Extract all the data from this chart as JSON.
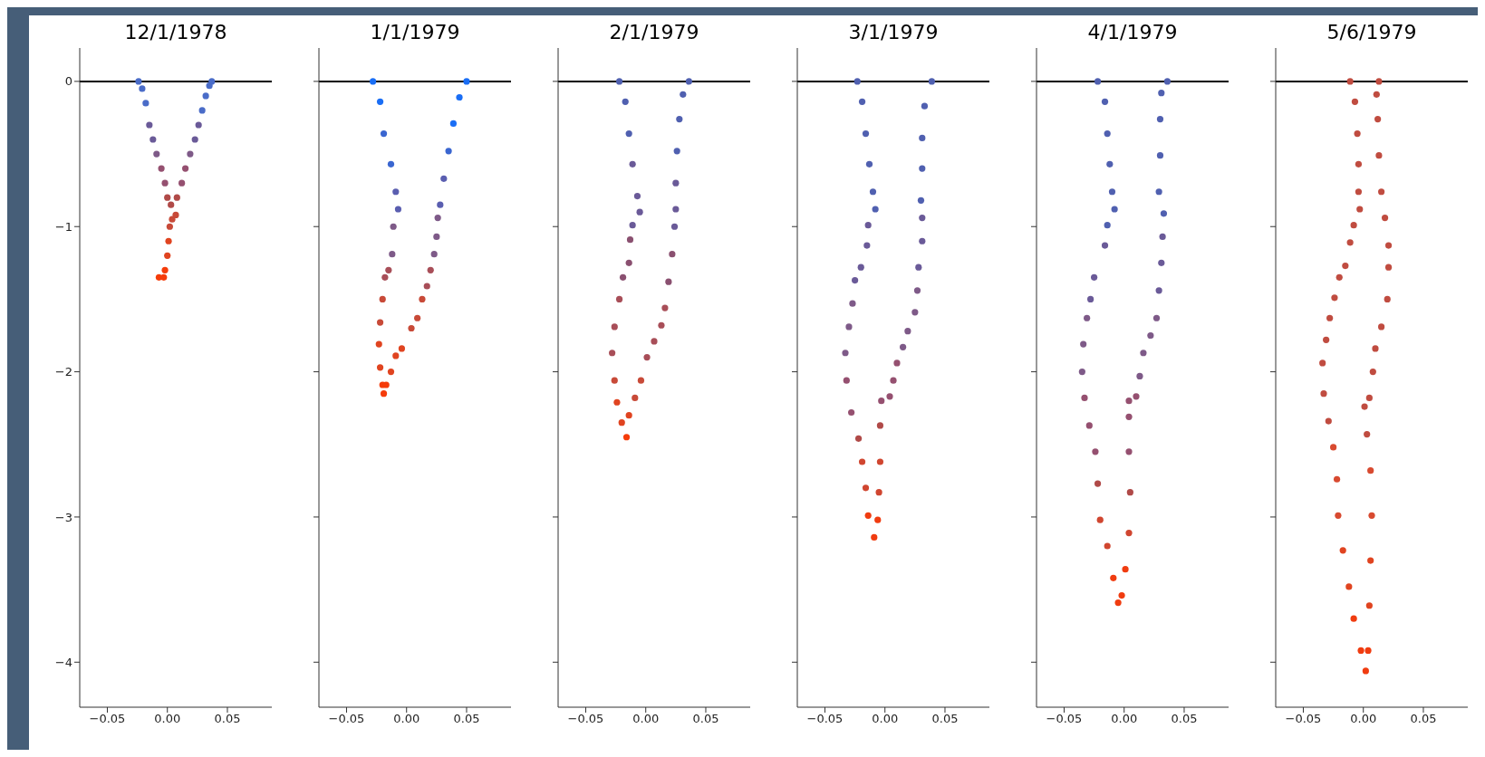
{
  "chart_data": [
    {
      "type": "scatter",
      "title": "12/1/1978",
      "marker": "circle",
      "xlim": [
        -0.073,
        0.087
      ],
      "xticks": [
        {
          "value": -0.05,
          "label": "−0.05"
        },
        {
          "value": 0,
          "label": "0.00"
        },
        {
          "value": 0.05,
          "label": "0.05"
        }
      ],
      "ylim": [
        -4.31,
        0.23
      ],
      "yticks": [
        {
          "value": 0,
          "label": "0"
        },
        {
          "value": -1,
          "label": "−1"
        },
        {
          "value": -2,
          "label": "−2"
        },
        {
          "value": -3,
          "label": "−3"
        },
        {
          "value": -4,
          "label": "−4"
        }
      ],
      "ref_lines": [
        {
          "axis": "y",
          "value": 0,
          "color": "#000000"
        }
      ],
      "x": [
        -0.024,
        -0.021,
        -0.018,
        -0.015,
        -0.012,
        -0.009,
        -0.005,
        -0.002,
        0.0,
        0.003,
        0.004,
        0.002,
        0.001,
        0.0,
        -0.002,
        -0.007,
        -0.003,
        0.007,
        0.008,
        0.012,
        0.015,
        0.019,
        0.023,
        0.026,
        0.029,
        0.032,
        0.035,
        0.037
      ],
      "values": [
        0,
        -0.05,
        -0.15,
        -0.3,
        -0.4,
        -0.5,
        -0.6,
        -0.7,
        -0.8,
        -0.85,
        -0.95,
        -1.0,
        -1.1,
        -1.2,
        -1.3,
        -1.35,
        -1.35,
        -0.92,
        -0.8,
        -0.7,
        -0.6,
        -0.5,
        -0.4,
        -0.3,
        -0.2,
        -0.1,
        -0.03,
        0
      ],
      "colors": [
        "#4a6cc8",
        "#4a6cc8",
        "#4a6cc8",
        "#6a5a98",
        "#6a5a98",
        "#7e5a88",
        "#955070",
        "#955070",
        "#b04a48",
        "#b04a48",
        "#c84a38",
        "#c84a38",
        "#e04420",
        "#e04420",
        "#f53c0a",
        "#f53c0a",
        "#f53c0a",
        "#c84a38",
        "#b04a48",
        "#955070",
        "#955070",
        "#7e5a88",
        "#6a5a98",
        "#6a5a98",
        "#4a6cc8",
        "#4a6cc8",
        "#4a6cc8",
        "#4a6cc8"
      ]
    },
    {
      "type": "scatter",
      "title": "1/1/1979",
      "marker": "circle",
      "tick_labels": "x",
      "xlim": [
        -0.073,
        0.087
      ],
      "xticks": [
        {
          "value": -0.05,
          "label": "−0.05"
        },
        {
          "value": 0,
          "label": "0.00"
        },
        {
          "value": 0.05,
          "label": "0.05"
        }
      ],
      "ylim": [
        -4.31,
        0.23
      ],
      "yticks": [
        {
          "value": 0,
          "label": null
        },
        {
          "value": -1,
          "label": null
        },
        {
          "value": -2,
          "label": null
        },
        {
          "value": -3,
          "label": null
        },
        {
          "value": -4,
          "label": null
        }
      ],
      "ref_lines": [
        {
          "axis": "y",
          "value": 0,
          "color": "#000000"
        }
      ],
      "x": [
        -0.028,
        -0.022,
        -0.019,
        -0.013,
        -0.009,
        -0.007,
        -0.011,
        -0.012,
        -0.015,
        -0.018,
        -0.02,
        -0.022,
        -0.023,
        -0.022,
        -0.02,
        -0.019,
        -0.017,
        -0.013,
        -0.009,
        -0.004,
        0.004,
        0.009,
        0.013,
        0.017,
        0.02,
        0.023,
        0.025,
        0.026,
        0.028,
        0.031,
        0.035,
        0.039,
        0.044,
        0.05
      ],
      "values": [
        0,
        -0.14,
        -0.36,
        -0.57,
        -0.76,
        -0.88,
        -1.0,
        -1.19,
        -1.3,
        -1.35,
        -1.5,
        -1.66,
        -1.81,
        -1.97,
        -2.09,
        -2.15,
        -2.09,
        -2.0,
        -1.89,
        -1.84,
        -1.7,
        -1.63,
        -1.5,
        -1.41,
        -1.3,
        -1.19,
        -1.07,
        -0.94,
        -0.85,
        -0.67,
        -0.48,
        -0.29,
        -0.11,
        0
      ],
      "colors": [
        "#1a6ef5",
        "#1a6ef5",
        "#3a66d0",
        "#3a66d0",
        "#5a5eb0",
        "#5a5eb0",
        "#7e5a88",
        "#7e5a88",
        "#a84e58",
        "#a84e58",
        "#c84a38",
        "#c84a38",
        "#e04420",
        "#e04420",
        "#f53c0a",
        "#f53c0a",
        "#f53c0a",
        "#e04420",
        "#e04420",
        "#e04420",
        "#c84a38",
        "#c84a38",
        "#c84a38",
        "#a84e58",
        "#a84e58",
        "#7e5a88",
        "#7e5a88",
        "#7e5a88",
        "#5a5eb0",
        "#5a5eb0",
        "#3a66d0",
        "#1a6ef5",
        "#1a6ef5",
        "#1a6ef5"
      ]
    },
    {
      "type": "scatter",
      "title": "2/1/1979",
      "marker": "circle",
      "tick_labels": "x",
      "xlim": [
        -0.073,
        0.087
      ],
      "xticks": [
        {
          "value": -0.05,
          "label": "−0.05"
        },
        {
          "value": 0,
          "label": "0.00"
        },
        {
          "value": 0.05,
          "label": "0.05"
        }
      ],
      "ylim": [
        -4.31,
        0.23
      ],
      "yticks": [
        {
          "value": 0,
          "label": null
        },
        {
          "value": -1,
          "label": null
        },
        {
          "value": -2,
          "label": null
        },
        {
          "value": -3,
          "label": null
        },
        {
          "value": -4,
          "label": null
        }
      ],
      "ref_lines": [
        {
          "axis": "y",
          "value": 0,
          "color": "#000000"
        }
      ],
      "x": [
        -0.022,
        -0.017,
        -0.014,
        -0.011,
        -0.007,
        -0.005,
        -0.011,
        -0.013,
        -0.014,
        -0.019,
        -0.022,
        -0.026,
        -0.028,
        -0.026,
        -0.024,
        -0.02,
        -0.016,
        -0.014,
        -0.009,
        -0.004,
        0.001,
        0.007,
        0.013,
        0.016,
        0.019,
        0.022,
        0.024,
        0.025,
        0.025,
        0.026,
        0.028,
        0.031,
        0.036
      ],
      "values": [
        0,
        -0.14,
        -0.36,
        -0.57,
        -0.79,
        -0.9,
        -0.99,
        -1.09,
        -1.25,
        -1.35,
        -1.5,
        -1.69,
        -1.87,
        -2.06,
        -2.21,
        -2.35,
        -2.45,
        -2.3,
        -2.18,
        -2.06,
        -1.9,
        -1.79,
        -1.68,
        -1.56,
        -1.38,
        -1.19,
        -1.0,
        -0.88,
        -0.7,
        -0.48,
        -0.26,
        -0.09,
        0
      ],
      "colors": [
        "#5060b0",
        "#5060b0",
        "#5060b0",
        "#6a5a98",
        "#6a5a98",
        "#6a5a98",
        "#6a5a98",
        "#8a5070",
        "#8a5070",
        "#8a5070",
        "#a84e58",
        "#a84e58",
        "#a84e58",
        "#c84a38",
        "#e04420",
        "#e04420",
        "#f53c0a",
        "#e04420",
        "#c84a38",
        "#c84a38",
        "#a84e58",
        "#a84e58",
        "#a84e58",
        "#a84e58",
        "#8a5070",
        "#8a5070",
        "#6a5a98",
        "#6a5a98",
        "#6a5a98",
        "#5060b0",
        "#5060b0",
        "#5060b0",
        "#5060b0"
      ]
    },
    {
      "type": "scatter",
      "title": "3/1/1979",
      "marker": "circle",
      "tick_labels": "x",
      "xlim": [
        -0.073,
        0.087
      ],
      "xticks": [
        {
          "value": -0.05,
          "label": "−0.05"
        },
        {
          "value": 0,
          "label": "0.00"
        },
        {
          "value": 0.05,
          "label": "0.05"
        }
      ],
      "ylim": [
        -4.31,
        0.23
      ],
      "yticks": [
        {
          "value": 0,
          "label": null
        },
        {
          "value": -1,
          "label": null
        },
        {
          "value": -2,
          "label": null
        },
        {
          "value": -3,
          "label": null
        },
        {
          "value": -4,
          "label": null
        }
      ],
      "ref_lines": [
        {
          "axis": "y",
          "value": 0,
          "color": "#000000"
        }
      ],
      "x": [
        -0.023,
        -0.019,
        -0.016,
        -0.013,
        -0.01,
        -0.008,
        -0.014,
        -0.015,
        -0.02,
        -0.025,
        -0.027,
        -0.03,
        -0.033,
        -0.032,
        -0.028,
        -0.022,
        -0.019,
        -0.016,
        -0.014,
        -0.009,
        -0.006,
        -0.005,
        -0.004,
        -0.004,
        -0.003,
        0.004,
        0.007,
        0.01,
        0.015,
        0.019,
        0.025,
        0.027,
        0.028,
        0.031,
        0.031,
        0.03,
        0.031,
        0.031,
        0.033,
        0.039
      ],
      "values": [
        0,
        -0.14,
        -0.36,
        -0.57,
        -0.76,
        -0.88,
        -0.99,
        -1.13,
        -1.28,
        -1.37,
        -1.53,
        -1.69,
        -1.87,
        -2.06,
        -2.28,
        -2.46,
        -2.62,
        -2.8,
        -2.99,
        -3.14,
        -3.02,
        -2.83,
        -2.62,
        -2.37,
        -2.2,
        -2.17,
        -2.06,
        -1.94,
        -1.83,
        -1.72,
        -1.59,
        -1.44,
        -1.28,
        -1.1,
        -0.94,
        -0.82,
        -0.6,
        -0.39,
        -0.17,
        0
      ],
      "colors": [
        "#5060b0",
        "#5060b0",
        "#5060b0",
        "#5060b0",
        "#5060b0",
        "#5060b0",
        "#6a5a98",
        "#6a5a98",
        "#6a5a98",
        "#6a5a98",
        "#7e5a88",
        "#7e5a88",
        "#7e5a88",
        "#955070",
        "#955070",
        "#b04a48",
        "#d04630",
        "#d04630",
        "#f03c10",
        "#f03c10",
        "#f03c10",
        "#d04630",
        "#d04630",
        "#b04a48",
        "#955070",
        "#955070",
        "#955070",
        "#955070",
        "#7e5a88",
        "#7e5a88",
        "#7e5a88",
        "#7e5a88",
        "#6a5a98",
        "#6a5a98",
        "#6a5a98",
        "#5060b0",
        "#5060b0",
        "#5060b0",
        "#5060b0",
        "#5060b0"
      ]
    },
    {
      "type": "scatter",
      "title": "4/1/1979",
      "marker": "circle",
      "tick_labels": "x",
      "xlim": [
        -0.073,
        0.087
      ],
      "xticks": [
        {
          "value": -0.05,
          "label": "−0.05"
        },
        {
          "value": 0,
          "label": "0.00"
        },
        {
          "value": 0.05,
          "label": "0.05"
        }
      ],
      "ylim": [
        -4.31,
        0.23
      ],
      "yticks": [
        {
          "value": 0,
          "label": null
        },
        {
          "value": -1,
          "label": null
        },
        {
          "value": -2,
          "label": null
        },
        {
          "value": -3,
          "label": null
        },
        {
          "value": -4,
          "label": null
        }
      ],
      "ref_lines": [
        {
          "axis": "y",
          "value": 0,
          "color": "#000000"
        }
      ],
      "x": [
        -0.022,
        -0.016,
        -0.014,
        -0.012,
        -0.01,
        -0.008,
        -0.014,
        -0.016,
        -0.025,
        -0.028,
        -0.031,
        -0.034,
        -0.035,
        -0.033,
        -0.029,
        -0.024,
        -0.022,
        -0.02,
        -0.014,
        -0.009,
        -0.005,
        -0.002,
        0.001,
        0.004,
        0.005,
        0.004,
        0.004,
        0.004,
        0.01,
        0.013,
        0.016,
        0.022,
        0.027,
        0.029,
        0.031,
        0.032,
        0.033,
        0.029,
        0.03,
        0.03,
        0.031,
        0.036
      ],
      "values": [
        0,
        -0.14,
        -0.36,
        -0.57,
        -0.76,
        -0.88,
        -0.99,
        -1.13,
        -1.35,
        -1.5,
        -1.63,
        -1.81,
        -2.0,
        -2.18,
        -2.37,
        -2.55,
        -2.77,
        -3.02,
        -3.2,
        -3.42,
        -3.59,
        -3.54,
        -3.36,
        -3.11,
        -2.83,
        -2.55,
        -2.31,
        -2.2,
        -2.17,
        -2.03,
        -1.87,
        -1.75,
        -1.63,
        -1.44,
        -1.25,
        -1.07,
        -0.91,
        -0.76,
        -0.51,
        -0.26,
        -0.08,
        0
      ],
      "colors": [
        "#5060b0",
        "#5060b0",
        "#5060b0",
        "#5060b0",
        "#5060b0",
        "#5060b0",
        "#5060b0",
        "#6a5a98",
        "#6a5a98",
        "#6a5a98",
        "#7e5a88",
        "#7e5a88",
        "#7e5a88",
        "#955070",
        "#955070",
        "#955070",
        "#b04a48",
        "#d04630",
        "#d04630",
        "#f03c10",
        "#f03c10",
        "#f03c10",
        "#f03c10",
        "#d04630",
        "#b04a48",
        "#955070",
        "#955070",
        "#955070",
        "#955070",
        "#7e5a88",
        "#7e5a88",
        "#7e5a88",
        "#7e5a88",
        "#6a5a98",
        "#6a5a98",
        "#6a5a98",
        "#5060b0",
        "#5060b0",
        "#5060b0",
        "#5060b0",
        "#5060b0",
        "#5060b0"
      ]
    },
    {
      "type": "scatter",
      "title": "5/6/1979",
      "marker": "circle",
      "tick_labels": "x",
      "xlim": [
        -0.073,
        0.087
      ],
      "xticks": [
        {
          "value": -0.05,
          "label": "−0.05"
        },
        {
          "value": 0,
          "label": "0.00"
        },
        {
          "value": 0.05,
          "label": "0.05"
        }
      ],
      "ylim": [
        -4.31,
        0.23
      ],
      "yticks": [
        {
          "value": 0,
          "label": null
        },
        {
          "value": -1,
          "label": null
        },
        {
          "value": -2,
          "label": null
        },
        {
          "value": -3,
          "label": null
        },
        {
          "value": -4,
          "label": null
        }
      ],
      "ref_lines": [
        {
          "axis": "y",
          "value": 0,
          "color": "#000000"
        }
      ],
      "x": [
        -0.011,
        -0.007,
        -0.005,
        -0.004,
        -0.004,
        -0.003,
        -0.008,
        -0.011,
        -0.015,
        -0.02,
        -0.024,
        -0.028,
        -0.031,
        -0.034,
        -0.033,
        -0.029,
        -0.025,
        -0.022,
        -0.021,
        -0.017,
        -0.012,
        -0.008,
        -0.002,
        0.002,
        0.004,
        0.005,
        0.006,
        0.007,
        0.006,
        0.003,
        0.001,
        0.005,
        0.008,
        0.01,
        0.015,
        0.02,
        0.021,
        0.021,
        0.018,
        0.015,
        0.013,
        0.012,
        0.011,
        0.013
      ],
      "values": [
        0,
        -0.14,
        -0.36,
        -0.57,
        -0.76,
        -0.88,
        -0.99,
        -1.11,
        -1.27,
        -1.35,
        -1.49,
        -1.63,
        -1.78,
        -1.94,
        -2.15,
        -2.34,
        -2.52,
        -2.74,
        -2.99,
        -3.23,
        -3.48,
        -3.7,
        -3.92,
        -4.06,
        -3.92,
        -3.61,
        -3.3,
        -2.99,
        -2.68,
        -2.43,
        -2.24,
        -2.18,
        -2.0,
        -1.84,
        -1.69,
        -1.5,
        -1.28,
        -1.13,
        -0.94,
        -0.76,
        -0.51,
        -0.26,
        -0.09,
        0
      ],
      "colors": [
        "#c04c40",
        "#c04c40",
        "#c04c40",
        "#c04c40",
        "#c04c40",
        "#c04c40",
        "#c04c40",
        "#c04c40",
        "#c04c40",
        "#c04c40",
        "#c04c40",
        "#c04c40",
        "#c04c40",
        "#c04c40",
        "#c04c40",
        "#c04c40",
        "#d84a30",
        "#d84a30",
        "#d84a30",
        "#e04420",
        "#e04420",
        "#f03c10",
        "#f03c10",
        "#f03c10",
        "#f03c10",
        "#e04420",
        "#e04420",
        "#d84a30",
        "#d84a30",
        "#c04c40",
        "#c04c40",
        "#c04c40",
        "#c04c40",
        "#c04c40",
        "#c04c40",
        "#c04c40",
        "#c04c40",
        "#c04c40",
        "#c04c40",
        "#c04c40",
        "#c04c40",
        "#c04c40",
        "#c04c40",
        "#c04c40"
      ]
    }
  ]
}
